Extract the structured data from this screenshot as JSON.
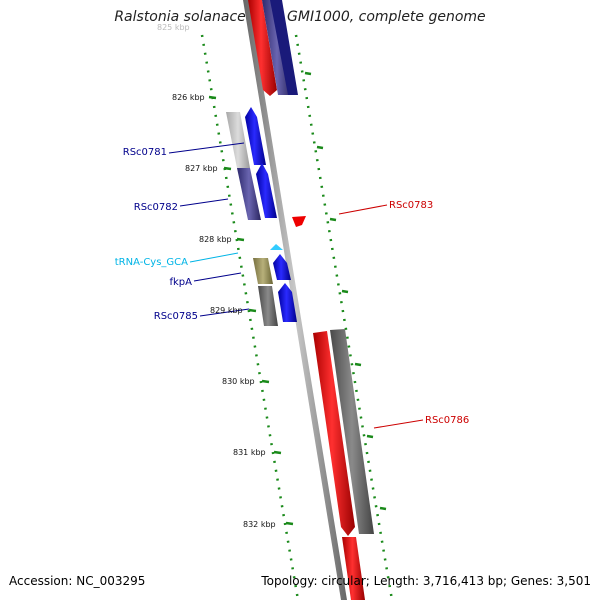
{
  "title": "Ralstonia solanacearum GMI1000, complete genome",
  "footer": {
    "accession": "Accession: NC_003295",
    "stats": "Topology: circular; Length: 3,716,413 bp; Genes: 3,501"
  },
  "ticks": {
    "top_partial": "825 kbp",
    "k826": "826 kbp",
    "k827": "827 kbp",
    "k828": "828 kbp",
    "k829": "829 kbp",
    "k830": "830 kbp",
    "k831": "831 kbp",
    "k832": "832 kbp"
  },
  "genes": {
    "rsc0781": "RSc0781",
    "rsc0782": "RSc0782",
    "rsc0783": "RSc0783",
    "trna": "tRNA-Cys_GCA",
    "fkpa": "fkpA",
    "rsc0785": "RSc0785",
    "rsc0786": "RSc0786"
  },
  "colors": {
    "forward_cds": "#0000ff",
    "reverse_cds": "#ff0000",
    "trna": "#33ccff",
    "backbone": "#888888",
    "tick_marks": "#008000"
  }
}
